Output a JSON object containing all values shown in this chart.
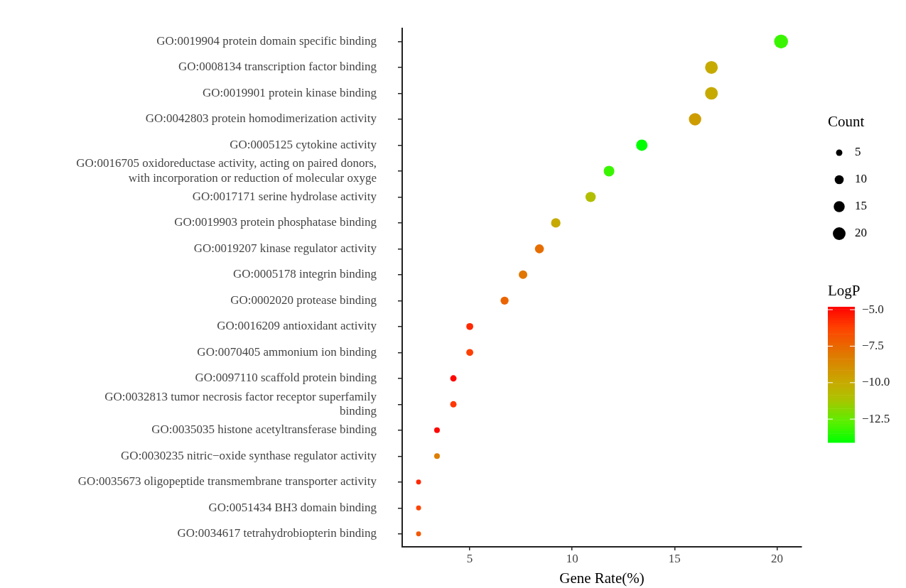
{
  "chart_data": {
    "type": "bubble",
    "categories": [
      "GO:0019904 protein domain specific binding",
      "GO:0008134 transcription factor binding",
      "GO:0019901 protein kinase binding",
      "GO:0042803 protein homodimerization activity",
      "GO:0005125 cytokine activity",
      "GO:0016705 oxidoreductase activity, acting on paired donors,\nwith incorporation or reduction of molecular oxyge",
      "GO:0017171 serine hydrolase activity",
      "GO:0019903 protein phosphatase binding",
      "GO:0019207 kinase regulator activity",
      "GO:0005178 integrin binding",
      "GO:0002020 protease binding",
      "GO:0016209 antioxidant activity",
      "GO:0070405 ammonium ion binding",
      "GO:0097110 scaffold protein binding",
      "GO:0032813 tumor necrosis factor receptor superfamily\nbinding",
      "GO:0035035 histone acetyltransferase binding",
      "GO:0030235 nitric−oxide synthase regulator activity",
      "GO:0035673 oligopeptide transmembrane transporter activity",
      "GO:0051434 BH3 domain binding",
      "GO:0034617 tetrahydrobiopterin binding"
    ],
    "values": [
      20.2,
      16.8,
      16.8,
      16.0,
      13.4,
      11.8,
      10.9,
      9.2,
      8.4,
      7.6,
      6.7,
      5.0,
      5.0,
      4.2,
      4.2,
      3.4,
      3.4,
      2.5,
      2.5,
      2.5
    ],
    "sizes": [
      24,
      20,
      20,
      19,
      16,
      14,
      13,
      11,
      10,
      9,
      8,
      6,
      6,
      5,
      5,
      4,
      4,
      3,
      3,
      3
    ],
    "cvalues": [
      -13.2,
      -10.0,
      -10.0,
      -9.5,
      -14.1,
      -13.2,
      -11.0,
      -10.0,
      -7.7,
      -8.0,
      -7.4,
      -5.7,
      -6.2,
      -4.9,
      -6.0,
      -4.9,
      -8.3,
      -5.7,
      -6.3,
      -7.0
    ],
    "size_legend": [
      5,
      10,
      15,
      20
    ],
    "legend_title": "Count",
    "clabel": "LogP",
    "clim": [
      -14.1,
      -4.8
    ],
    "cticks": [
      {
        "value": -5,
        "label": "−5.0"
      },
      {
        "value": -7.5,
        "label": "−7.5"
      },
      {
        "value": -10,
        "label": "−10.0"
      },
      {
        "value": -12.5,
        "label": "−12.5"
      }
    ],
    "xlabel": "Gene Rate(%)",
    "xlim": [
      1.7,
      21.2
    ],
    "xticks": [
      5,
      10,
      15,
      20
    ],
    "orientation": "horizontal",
    "grid": false
  }
}
